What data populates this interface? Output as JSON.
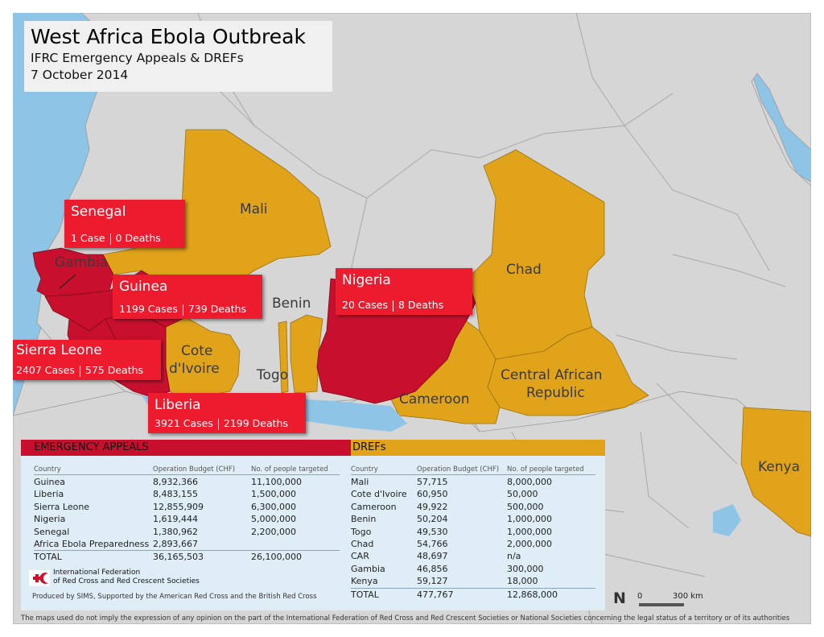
{
  "title": {
    "main": "West Africa Ebola Outbreak",
    "subtitle": "IFRC Emergency Appeals & DREFs",
    "date": "7 October 2014"
  },
  "colors": {
    "ocean": "#8ec4e6",
    "land": "#d6d6d6",
    "emergency_appeal": "#c8102e",
    "dref": "#e0a31a",
    "callout": "#ec1c2e",
    "panel": "#dfedf7"
  },
  "map_labels": {
    "mali": "Mali",
    "chad": "Chad",
    "gambia": "Gambia",
    "benin": "Benin",
    "cote_line1": "Cote",
    "cote_line2": "d'Ivoire",
    "togo": "Togo",
    "cameroon": "Cameroon",
    "car_line1": "Central African",
    "car_line2": "Republic",
    "kenya": "Kenya"
  },
  "callouts": [
    {
      "country": "Senegal",
      "cases": "1 Case",
      "deaths": "0 Deaths"
    },
    {
      "country": "Guinea",
      "cases": "1199 Cases",
      "deaths": "739 Deaths"
    },
    {
      "country": "Sierra Leone",
      "cases": "2407 Cases",
      "deaths": "575 Deaths"
    },
    {
      "country": "Liberia",
      "cases": "3921 Cases",
      "deaths": "2199 Deaths"
    },
    {
      "country": "Nigeria",
      "cases": "20 Cases",
      "deaths": "8 Deaths"
    }
  ],
  "emergency_appeals": {
    "header": "EMERGENCY APPEALS",
    "columns": [
      "Country",
      "Operation Budget (CHF)",
      "No. of people targeted"
    ],
    "rows": [
      [
        "Guinea",
        "8,932,366",
        "11,100,000"
      ],
      [
        "Liberia",
        "8,483,155",
        "1,500,000"
      ],
      [
        "Sierra Leone",
        "12,855,909",
        "6,300,000"
      ],
      [
        "Nigeria",
        "1,619,444",
        "5,000,000"
      ],
      [
        "Senegal",
        "1,380,962",
        "2,200,000"
      ],
      [
        "Africa Ebola Preparedness",
        "2,893,667",
        ""
      ]
    ],
    "total": [
      "TOTAL",
      "36,165,503",
      "26,100,000"
    ]
  },
  "drefs": {
    "header": "DREFs",
    "columns": [
      "Country",
      "Operation Budget (CHF)",
      "No. of people targeted"
    ],
    "rows": [
      [
        "Mali",
        "57,715",
        "8,000,000"
      ],
      [
        "Cote d'Ivoire",
        "60,950",
        "50,000"
      ],
      [
        "Cameroon",
        "49,922",
        "500,000"
      ],
      [
        "Benin",
        "50,204",
        "1,000,000"
      ],
      [
        "Togo",
        "49,530",
        "1,000,000"
      ],
      [
        "Chad",
        "54,766",
        "2,000,000"
      ],
      [
        "CAR",
        "48,697",
        "n/a"
      ],
      [
        "Gambia",
        "46,856",
        "300,000"
      ],
      [
        "Kenya",
        "59,127",
        "18,000"
      ]
    ],
    "total": [
      "TOTAL",
      "477,767",
      "12,868,000"
    ]
  },
  "logo_text": "International Federation\nof Red Cross and Red Crescent Societies",
  "produced_by": "Produced by SIMS, Supported by the American Red Cross and the British Red Cross",
  "disclaimer": "The maps used do not imply the expression of any opinion on the part of the International Federation of Red Cross and Red Crescent Societies or National Societies concerning the legal status of a territory or of its authorities",
  "scale": {
    "north": "N",
    "zero": "0",
    "distance": "300 km"
  }
}
